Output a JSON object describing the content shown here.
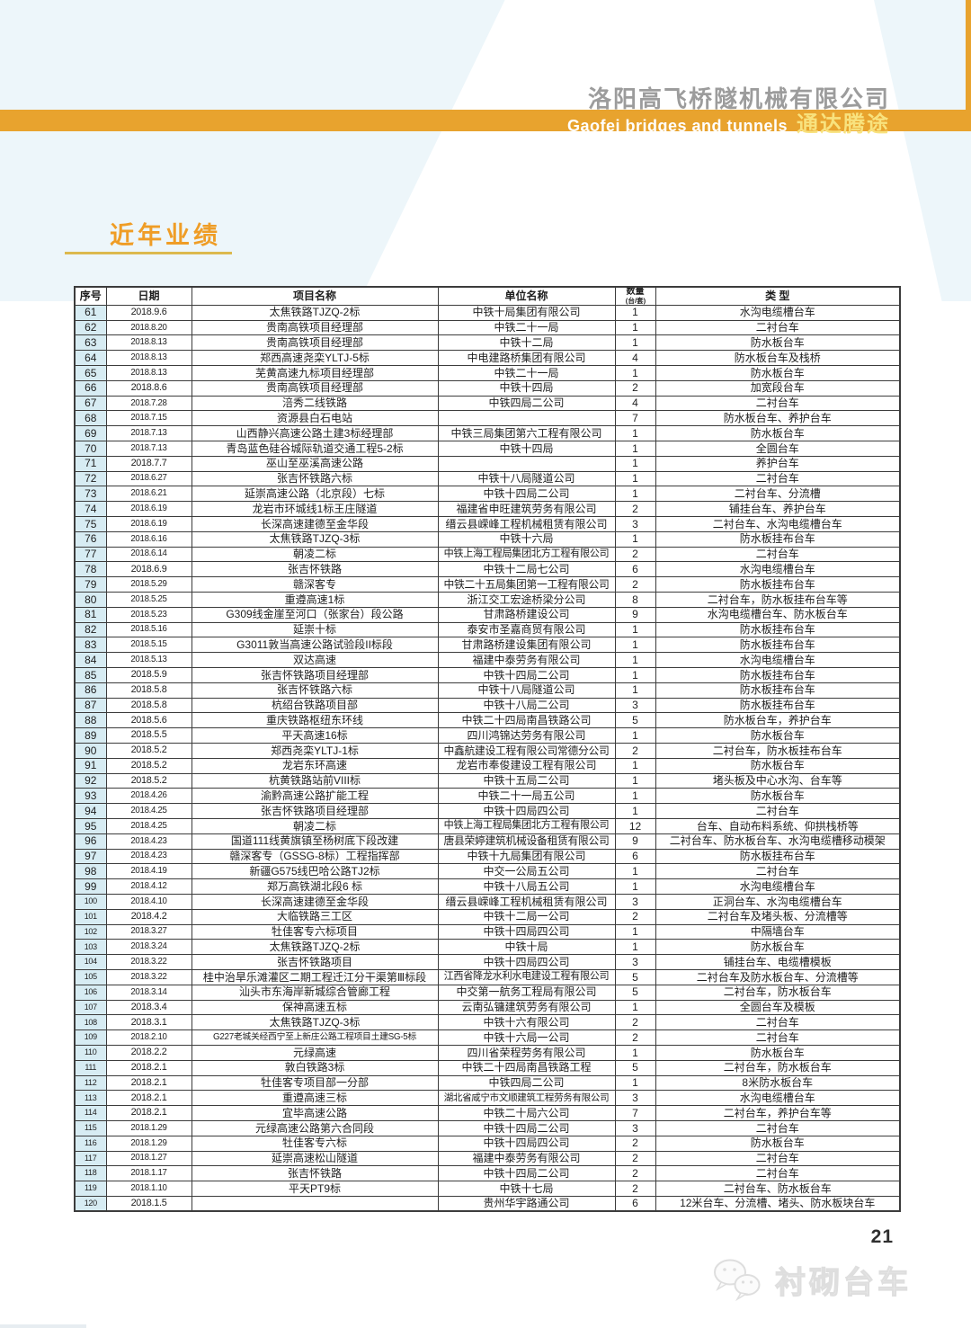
{
  "header": {
    "company_name": "洛阳高飞桥隧机械有限公司",
    "banner_en": "Gaofei bridges and tunnels",
    "banner_cn": "通达腾途"
  },
  "section_title": "近年业绩",
  "table": {
    "columns": [
      {
        "label": "序号"
      },
      {
        "label": "日期"
      },
      {
        "label": "项目名称"
      },
      {
        "label": "单位名称"
      },
      {
        "label": "数量",
        "sub": "(台/套)"
      },
      {
        "label": "类 型"
      }
    ],
    "rows": [
      [
        "61",
        "2018.9.6",
        "太焦铁路TJZQ-2标",
        "中铁十局集团有限公司",
        "1",
        "水沟电缆槽台车"
      ],
      [
        "62",
        "2018.8.20",
        "贵南高铁项目经理部",
        "中铁二十一局",
        "1",
        "二衬台车"
      ],
      [
        "63",
        "2018.8.13",
        "贵南高铁项目经理部",
        "中铁十二局",
        "1",
        "防水板台车"
      ],
      [
        "64",
        "2018.8.13",
        "郑西高速尧栾YLTJ-5标",
        "中电建路桥集团有限公司",
        "4",
        "防水板台车及栈桥"
      ],
      [
        "65",
        "2018.8.13",
        "芜黄高速九标项目经理部",
        "中铁二十一局",
        "1",
        "防水板台车"
      ],
      [
        "66",
        "2018.8.6",
        "贵南高铁项目经理部",
        "中铁十四局",
        "2",
        "加宽段台车"
      ],
      [
        "67",
        "2018.7.28",
        "涪秀二线铁路",
        "中铁四局二公司",
        "4",
        "二衬台车"
      ],
      [
        "68",
        "2018.7.15",
        "资源县白石电站",
        "",
        "7",
        "防水板台车、养护台车"
      ],
      [
        "69",
        "2018.7.13",
        "山西静兴高速公路土建3标经理部",
        "中铁三局集团第六工程有限公司",
        "1",
        "防水板台车"
      ],
      [
        "70",
        "2018.7.13",
        "青岛蓝色硅谷城际轨道交通工程5-2标",
        "中铁十四局",
        "1",
        "全圆台车"
      ],
      [
        "71",
        "2018.7.7",
        "巫山至巫溪高速公路",
        "",
        "1",
        "养护台车"
      ],
      [
        "72",
        "2018.6.27",
        "张吉怀铁路六标",
        "中铁十八局隧道公司",
        "1",
        "二衬台车"
      ],
      [
        "73",
        "2018.6.21",
        "延崇高速公路（北京段）七标",
        "中铁十四局二公司",
        "1",
        "二衬台车、分流槽"
      ],
      [
        "74",
        "2018.6.19",
        "龙岩市环城线1标王庄隧道",
        "福建省申旺建筑劳务有限公司",
        "2",
        "铺挂台车、养护台车"
      ],
      [
        "75",
        "2018.6.19",
        "长深高速建德至金华段",
        "缙云县嵘峰工程机械租赁有限公司",
        "3",
        "二衬台车、水沟电缆槽台车"
      ],
      [
        "76",
        "2018.6.16",
        "太焦铁路TJZQ-3标",
        "中铁十六局",
        "1",
        "防水板挂布台车"
      ],
      [
        "77",
        "2018.6.14",
        "朝凌二标",
        "中铁上海工程局集团北方工程有限公司",
        "2",
        "二衬台车"
      ],
      [
        "78",
        "2018.6.9",
        "张吉怀铁路",
        "中铁十二局七公司",
        "6",
        "水沟电缆槽台车"
      ],
      [
        "79",
        "2018.5.29",
        "赣深客专",
        "中铁二十五局集团第一工程有限公司",
        "2",
        "防水板挂布台车"
      ],
      [
        "80",
        "2018.5.25",
        "重遵高速1标",
        "浙江交工宏途桥梁分公司",
        "8",
        "二衬台车，防水板挂布台车等"
      ],
      [
        "81",
        "2018.5.23",
        "G309线金崖至河口（张家台）段公路",
        "甘肃路桥建设公司",
        "9",
        "水沟电缆槽台车、防水板台车"
      ],
      [
        "82",
        "2018.5.16",
        "延崇十标",
        "泰安市圣嘉商贸有限公司",
        "1",
        "防水板挂布台车"
      ],
      [
        "83",
        "2018.5.15",
        "G3011敦当高速公路试验段II标段",
        "甘肃路桥建设集团有限公司",
        "1",
        "防水板挂布台车"
      ],
      [
        "84",
        "2018.5.13",
        "双达高速",
        "福建中泰劳务有限公司",
        "1",
        "水沟电缆槽台车"
      ],
      [
        "85",
        "2018.5.9",
        "张吉怀铁路项目经理部",
        "中铁十四局二公司",
        "1",
        "防水板挂布台车"
      ],
      [
        "86",
        "2018.5.8",
        "张吉怀铁路六标",
        "中铁十八局隧道公司",
        "1",
        "防水板挂布台车"
      ],
      [
        "87",
        "2018.5.8",
        "杭绍台铁路项目部",
        "中铁十八局二公司",
        "3",
        "防水板挂布台车"
      ],
      [
        "88",
        "2018.5.6",
        "重庆铁路枢纽东环线",
        "中铁二十四局南昌铁路公司",
        "5",
        "防水板台车，养护台车"
      ],
      [
        "89",
        "2018.5.5",
        "平天高速16标",
        "四川鸿锦达劳务有限公司",
        "1",
        "防水板台车"
      ],
      [
        "90",
        "2018.5.2",
        "郑西尧栾YLTJ-1标",
        "中鑫航建设工程有限公司常德分公司",
        "2",
        "二衬台车，防水板挂布台车"
      ],
      [
        "91",
        "2018.5.2",
        "龙岩东环高速",
        "龙岩市奉俊建设工程有限公司",
        "1",
        "防水板台车"
      ],
      [
        "92",
        "2018.5.2",
        "杭黄铁路站前VIII标",
        "中铁十五局二公司",
        "1",
        "堵头板及中心水沟、台车等"
      ],
      [
        "93",
        "2018.4.26",
        "渝黔高速公路扩能工程",
        "中铁二十一局五公司",
        "1",
        "防水板台车"
      ],
      [
        "94",
        "2018.4.25",
        "张吉怀铁路项目经理部",
        "中铁十四局四公司",
        "1",
        "二衬台车"
      ],
      [
        "95",
        "2018.4.25",
        "朝凌二标",
        "中铁上海工程局集团北方工程有限公司",
        "12",
        "台车、自动布料系统、仰拱栈桥等"
      ],
      [
        "96",
        "2018.4.23",
        "国道111线黄旗镇至杨树底下段改建",
        "唐县荣婷建筑机械设备租赁有限公司",
        "9",
        "二衬台车、防水板台车、水沟电缆槽移动模架"
      ],
      [
        "97",
        "2018.4.23",
        "赣深客专（GSSG-8标）工程指挥部",
        "中铁十九局集团有限公司",
        "6",
        "防水板挂布台车"
      ],
      [
        "98",
        "2018.4.19",
        "新疆G575线巴哈公路TJ2标",
        "中交一公局五公司",
        "1",
        "二衬台车"
      ],
      [
        "99",
        "2018.4.12",
        "郑万高铁湖北段6 标",
        "中铁十八局五公司",
        "1",
        "水沟电缆槽台车"
      ],
      [
        "100",
        "2018.4.10",
        "长深高速建德至金华段",
        "缙云县嵘峰工程机械租赁有限公司",
        "3",
        "正洞台车、水沟电缆槽台车"
      ],
      [
        "101",
        "2018.4.2",
        "大临铁路三工区",
        "中铁十二局一公司",
        "2",
        "二衬台车及堵头板、分流槽等"
      ],
      [
        "102",
        "2018.3.27",
        "牡佳客专六标项目",
        "中铁十四局四公司",
        "1",
        "中隔墙台车"
      ],
      [
        "103",
        "2018.3.24",
        "太焦铁路TJZQ-2标",
        "中铁十局",
        "1",
        "防水板台车"
      ],
      [
        "104",
        "2018.3.22",
        "张吉怀铁路项目",
        "中铁十四局四公司",
        "3",
        "铺挂台车、电缆槽模板"
      ],
      [
        "105",
        "2018.3.22",
        "桂中治旱乐滩灌区二期工程迁江分干渠第Ⅲ标段",
        "江西省降龙水利水电建设工程有限公司",
        "5",
        "二衬台车及防水板台车、分流槽等"
      ],
      [
        "106",
        "2018.3.14",
        "汕头市东海岸新城综合管廊工程",
        "中交第一航务工程局有限公司",
        "5",
        "二衬台车，防水板台车"
      ],
      [
        "107",
        "2018.3.4",
        "保神高速五标",
        "云南弘镛建筑劳务有限公司",
        "1",
        "全圆台车及模板"
      ],
      [
        "108",
        "2018.3.1",
        "太焦铁路TJZQ-3标",
        "中铁十六有限公司",
        "2",
        "二衬台车"
      ],
      [
        "109",
        "2018.2.10",
        "G227老城关经西宁至上新庄公路工程项目土建SG-5标",
        "中铁十六局一公司",
        "2",
        "二衬台车"
      ],
      [
        "110",
        "2018.2.2",
        "元绿高速",
        "四川省荣程劳务有限公司",
        "1",
        "防水板台车"
      ],
      [
        "111",
        "2018.2.1",
        "敦白铁路3标",
        "中铁二十四局南昌铁路工程",
        "5",
        "二衬台车，防水板台车"
      ],
      [
        "112",
        "2018.2.1",
        "牡佳客专项目部一分部",
        "中铁四局二公司",
        "1",
        "8米防水板台车"
      ],
      [
        "113",
        "2018.2.1",
        "重遵高速三标",
        "湖北省咸宁市文顺建筑工程劳务有限公司",
        "3",
        "水沟电缆槽台车"
      ],
      [
        "114",
        "2018.2.1",
        "宜毕高速公路",
        "中铁二十局六公司",
        "7",
        "二衬台车，养护台车等"
      ],
      [
        "115",
        "2018.1.29",
        "元绿高速公路第六合同段",
        "中铁十四局二公司",
        "3",
        "二衬台车"
      ],
      [
        "116",
        "2018.1.29",
        "牡佳客专六标",
        "中铁十四局四公司",
        "2",
        "防水板台车"
      ],
      [
        "117",
        "2018.1.27",
        "延崇高速松山隧道",
        "福建中泰劳务有限公司",
        "2",
        "二衬台车"
      ],
      [
        "118",
        "2018.1.17",
        "张吉怀铁路",
        "中铁十四局二公司",
        "2",
        "二衬台车"
      ],
      [
        "119",
        "2018.1.10",
        "平天PT9标",
        "中铁十七局",
        "2",
        "二衬台车、防水板台车"
      ],
      [
        "120",
        "2018.1.5",
        "",
        "贵州华宇路通公司",
        "6",
        "12米台车、分流槽、堵头、防水板块台车"
      ]
    ]
  },
  "footer": {
    "page_number": "21",
    "watermark_text": "衬砌台车",
    "watermark_icon": "wechat-icon"
  },
  "colors": {
    "bar": "#E8A32E",
    "banner_cn": "#F8E27E",
    "title": "#EF9D26",
    "underline": "#DCB94E",
    "company": "#9C9C9C",
    "seqbg": "#D7ECF3",
    "border": "#3C3C3C",
    "bgblue": "#EDF6FA",
    "watermark": "#DEDEDE",
    "pagenum": "#2F2F2F"
  }
}
